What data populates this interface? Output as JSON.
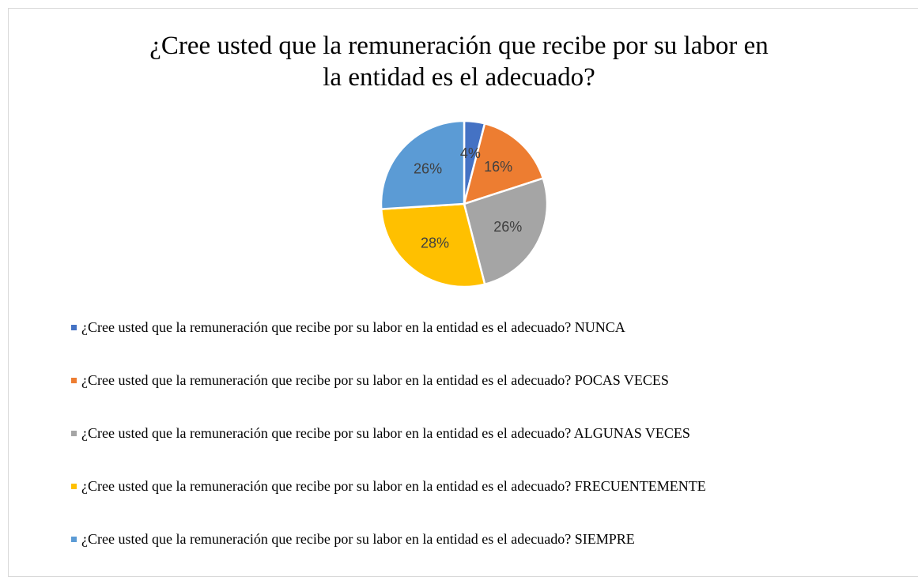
{
  "chart_data": {
    "type": "pie",
    "title": "¿Cree usted que la remuneración que recibe por su labor en la entidad es el adecuado?",
    "categories": [
      "¿Cree usted que la remuneración que recibe por su labor en la entidad es el adecuado? NUNCA",
      "¿Cree usted que la remuneración que recibe por su labor en la entidad es el adecuado? POCAS VECES",
      "¿Cree usted que la remuneración que recibe por su labor en la entidad es el adecuado? ALGUNAS VECES",
      "¿Cree usted que la remuneración que recibe por su labor en la entidad es el adecuado? FRECUENTEMENTE",
      "¿Cree usted que la remuneración que recibe por su labor en la entidad es el adecuado? SIEMPRE"
    ],
    "values": [
      4,
      16,
      26,
      28,
      26
    ],
    "value_labels": [
      "4%",
      "16%",
      "26%",
      "28%",
      "26%"
    ],
    "colors": [
      "#4472c4",
      "#ed7d31",
      "#a5a5a5",
      "#ffc000",
      "#5b9bd5"
    ],
    "legend": "bottom"
  }
}
